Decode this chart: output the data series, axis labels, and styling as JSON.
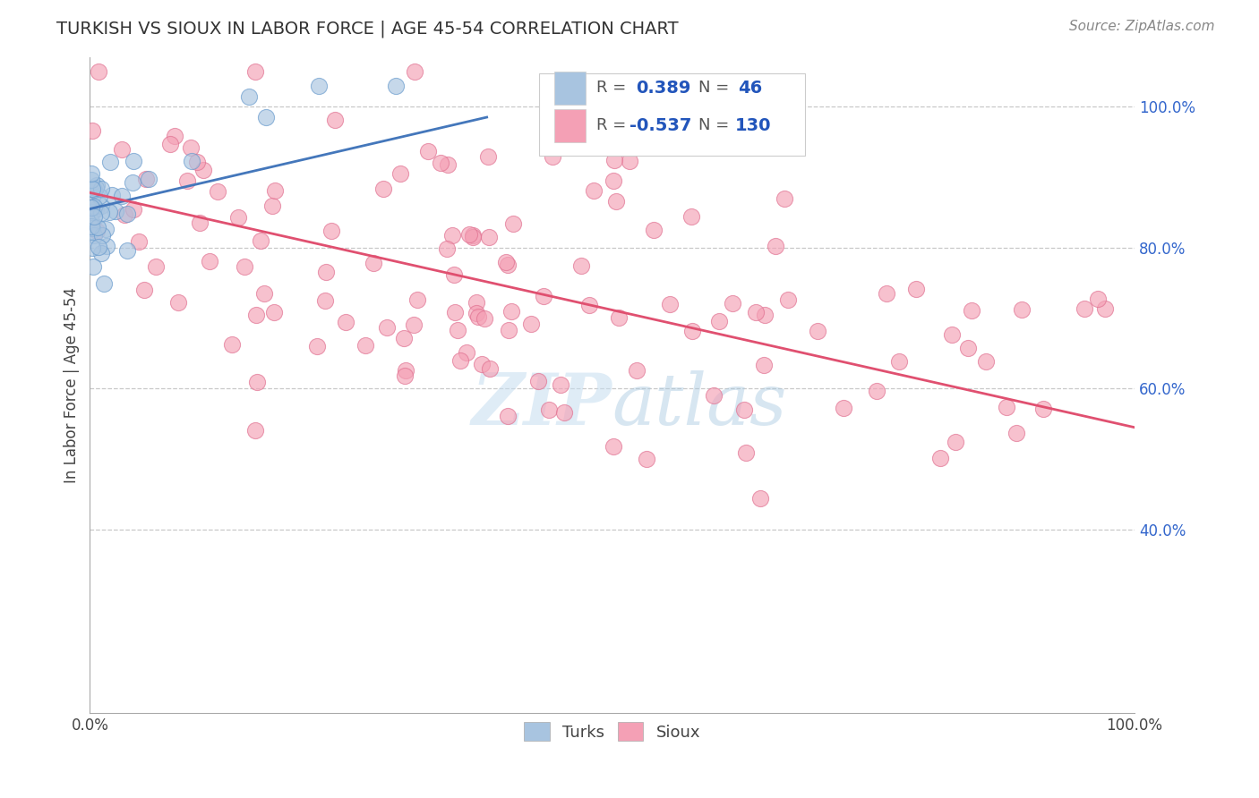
{
  "title": "TURKISH VS SIOUX IN LABOR FORCE | AGE 45-54 CORRELATION CHART",
  "source": "Source: ZipAtlas.com",
  "ylabel": "In Labor Force | Age 45-54",
  "xmin": 0.0,
  "xmax": 1.0,
  "ymin": 0.14,
  "ymax": 1.07,
  "right_yticks": [
    0.4,
    0.6,
    0.8,
    1.0
  ],
  "right_yticklabels": [
    "40.0%",
    "60.0%",
    "80.0%",
    "100.0%"
  ],
  "turks_R": 0.389,
  "turks_N": 46,
  "sioux_R": -0.537,
  "sioux_N": 130,
  "turks_color": "#a8c4e0",
  "sioux_color": "#f4a0b5",
  "turks_edge_color": "#6699cc",
  "sioux_edge_color": "#e07090",
  "turks_line_color": "#4477bb",
  "sioux_line_color": "#e05070",
  "legend_turks_label": "Turks",
  "legend_sioux_label": "Sioux",
  "turks_line_x0": 0.0,
  "turks_line_x1": 0.38,
  "turks_line_y0": 0.855,
  "turks_line_y1": 0.985,
  "sioux_line_x0": 0.0,
  "sioux_line_x1": 1.0,
  "sioux_line_y0": 0.878,
  "sioux_line_y1": 0.545,
  "watermark_text": "ZIPatlas",
  "watermark_color": "#c8dff0",
  "title_fontsize": 14,
  "axis_label_fontsize": 12,
  "tick_fontsize": 12,
  "source_fontsize": 11,
  "legend_fontsize": 13
}
